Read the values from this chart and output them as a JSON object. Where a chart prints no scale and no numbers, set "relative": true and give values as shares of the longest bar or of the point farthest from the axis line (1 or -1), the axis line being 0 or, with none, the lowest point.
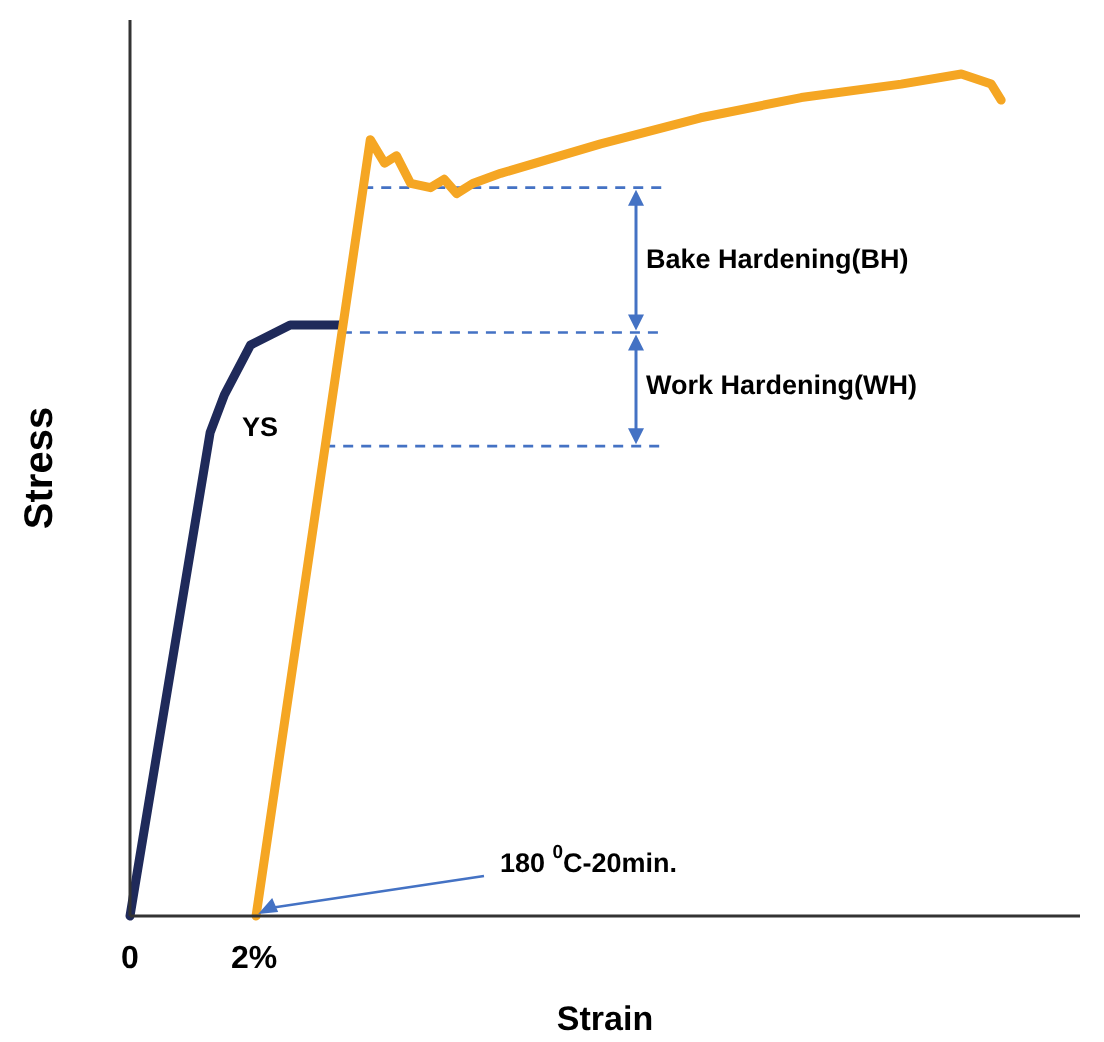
{
  "chart_data": {
    "type": "line",
    "relative": true,
    "xlabel": "Strain",
    "ylabel": "Stress",
    "xlim": [
      0,
      15.3
    ],
    "xticks": [
      0,
      {
        "value": 2,
        "label": "2%"
      }
    ],
    "tick_labels": "x",
    "grid": false,
    "marker": "none",
    "line_style": "solid",
    "series": [
      {
        "color": "#1f2a5a",
        "x": [
          0,
          1.29,
          1.52,
          1.94,
          2.58,
          3.39
        ],
        "values": [
          0,
          0.574,
          0.619,
          0.678,
          0.702,
          0.702
        ]
      },
      {
        "color": "#f5a623",
        "x": [
          2.03,
          3.87,
          4.1,
          4.29,
          4.52,
          4.84,
          5.06,
          5.26,
          5.52,
          5.97,
          7.58,
          9.19,
          10.81,
          12.42,
          13.39,
          13.87,
          14.03
        ],
        "values": [
          0,
          0.922,
          0.894,
          0.903,
          0.87,
          0.865,
          0.875,
          0.858,
          0.87,
          0.882,
          0.917,
          0.948,
          0.972,
          0.988,
          1,
          0.988,
          0.969
        ]
      }
    ],
    "ref_lines": [
      {
        "axis": "y",
        "value": 0.865,
        "color": "#4472c4",
        "line_style": "dashed"
      },
      {
        "axis": "y",
        "value": 0.693,
        "color": "#4472c4",
        "line_style": "dashed"
      },
      {
        "axis": "y",
        "value": 0.558,
        "color": "#4472c4",
        "line_style": "dashed"
      }
    ],
    "annotations": [
      "Bake Hardening(BH)",
      "Work Hardening(WH)",
      "YS",
      "180 $^{0}$C-20min."
    ]
  }
}
